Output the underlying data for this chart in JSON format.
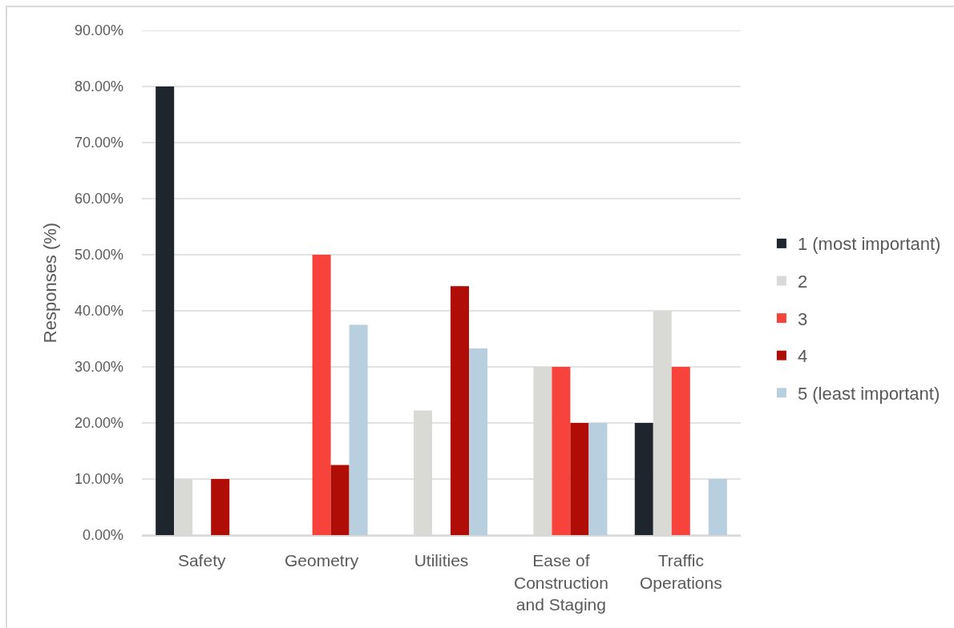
{
  "chart_data": {
    "type": "bar",
    "ylabel": "Responses (%)",
    "categories": [
      "Safety",
      "Geometry",
      "Utilities",
      "Ease of Construction and Staging",
      "Traffic Operations"
    ],
    "series": [
      {
        "name": "1 (most important)",
        "color": "#1f252d",
        "values": [
          80,
          0,
          0,
          0,
          20
        ]
      },
      {
        "name": "2",
        "color": "#d9d9d5",
        "values": [
          10,
          0,
          22.2,
          30,
          40
        ]
      },
      {
        "name": "3",
        "color": "#f8433c",
        "values": [
          0,
          50,
          0,
          30,
          30
        ]
      },
      {
        "name": "4",
        "color": "#b10d07",
        "values": [
          10,
          12.5,
          44.4,
          20,
          0
        ]
      },
      {
        "name": "5 (least important)",
        "color": "#b8cfe0",
        "values": [
          0,
          37.5,
          33.3,
          20,
          10
        ]
      }
    ],
    "ylim": [
      0,
      90
    ],
    "yticks": [
      {
        "value": 0,
        "label": "0.00%"
      },
      {
        "value": 10,
        "label": "10.00%"
      },
      {
        "value": 20,
        "label": "20.00%"
      },
      {
        "value": 30,
        "label": "30.00%"
      },
      {
        "value": 40,
        "label": "40.00%"
      },
      {
        "value": 50,
        "label": "50.00%"
      },
      {
        "value": 60,
        "label": "60.00%"
      },
      {
        "value": 70,
        "label": "70.00%"
      },
      {
        "value": 80,
        "label": "80.00%"
      },
      {
        "value": 90,
        "label": "90.00%"
      }
    ],
    "grid": "y",
    "legend": "right"
  }
}
